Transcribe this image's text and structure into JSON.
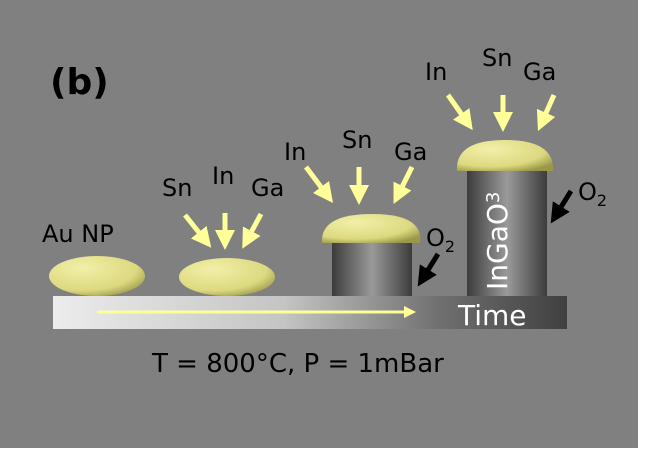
{
  "panel_label": "(b)",
  "stages": {
    "stage1": {
      "label": "Au NP"
    },
    "stage2": {
      "labels": [
        "Sn",
        "In",
        "Ga"
      ]
    },
    "stage3": {
      "labels": [
        "In",
        "Sn",
        "Ga"
      ],
      "gas": "O",
      "gas_sub": "2"
    },
    "stage4": {
      "labels": [
        "In",
        "Sn",
        "Ga"
      ],
      "gas": "O",
      "gas_sub": "2",
      "wire_label": "InGaO",
      "wire_sub": "3"
    }
  },
  "axis_label": "Time",
  "conditions": "T = 800°C, P = 1mBar",
  "colors": {
    "background": "#808080",
    "particle": "#e6e48e",
    "arrow": "#ffff99",
    "o2_arrow": "#000000"
  }
}
